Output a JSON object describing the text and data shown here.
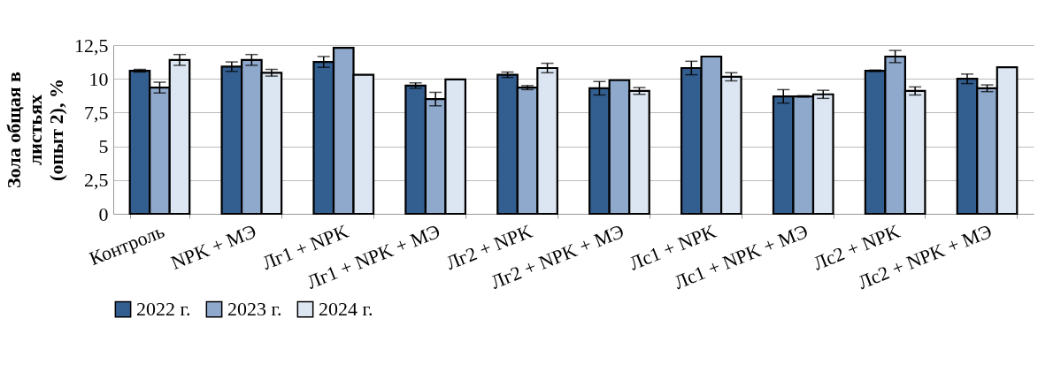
{
  "chart_data": {
    "type": "bar",
    "ylabel": "Зола общая в\nлистьях\n(опыт 2), %",
    "categories": [
      "Контроль",
      "NPK + МЭ",
      "Лг1 + NPK",
      "Лг1 + NPK + МЭ",
      "Лг2 + NPK",
      "Лг2 + NPK + МЭ",
      "Лс1 + NPK",
      "Лс1 + NPK + МЭ",
      "Лс2 + NPK",
      "Лс2 + NPK + МЭ"
    ],
    "series": [
      {
        "name": "2022 г.",
        "color": "#335e90",
        "values": [
          10.6,
          10.9,
          11.25,
          9.5,
          10.3,
          9.3,
          10.8,
          8.7,
          10.6,
          10.0
        ],
        "errors": [
          0.1,
          0.35,
          0.4,
          0.2,
          0.2,
          0.5,
          0.5,
          0.5,
          0.05,
          0.35
        ]
      },
      {
        "name": "2023 г.",
        "color": "#8fa9cc",
        "values": [
          9.35,
          11.4,
          12.3,
          8.5,
          9.35,
          9.9,
          11.65,
          8.7,
          11.65,
          9.3
        ],
        "errors": [
          0.4,
          0.4,
          null,
          0.5,
          0.15,
          null,
          null,
          0.05,
          0.45,
          0.25
        ]
      },
      {
        "name": "2024 г.",
        "color": "#dce6f2",
        "values": [
          11.4,
          10.45,
          10.3,
          9.95,
          10.8,
          9.1,
          10.15,
          8.85,
          9.1,
          10.85
        ],
        "errors": [
          0.4,
          0.25,
          null,
          null,
          0.35,
          0.25,
          0.3,
          0.3,
          0.3,
          null
        ]
      }
    ],
    "ylim": [
      0,
      12.5
    ],
    "yticks": [
      0,
      {
        "value": 2.5,
        "label": "2,5"
      },
      {
        "value": 5,
        "label": "5"
      },
      {
        "value": 7.5,
        "label": "7,5"
      },
      {
        "value": 10,
        "label": "10"
      },
      {
        "value": 12.5,
        "label": "12,5"
      }
    ],
    "grid": "y",
    "legend": "bottom"
  }
}
